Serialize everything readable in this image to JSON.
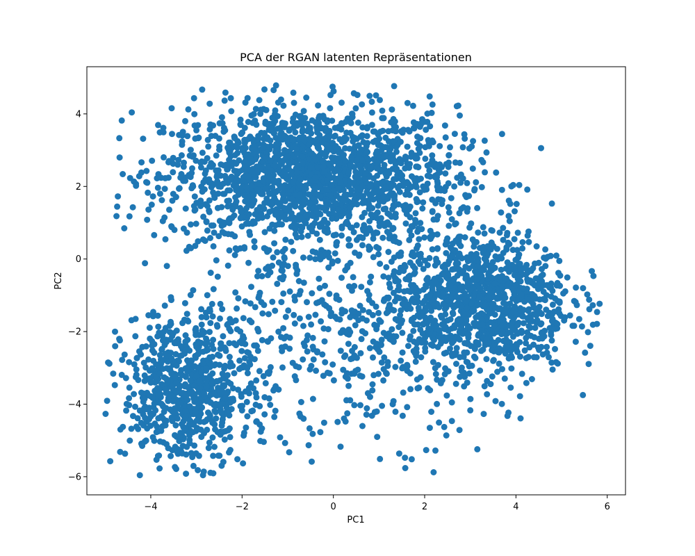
{
  "chart_data": {
    "type": "scatter",
    "title": "PCA der RGAN latenten Repräsentationen",
    "xlabel": "PC1",
    "ylabel": "PC2",
    "xlim": [
      -5.4,
      6.4
    ],
    "ylim": [
      -6.5,
      5.3
    ],
    "xticks": [
      -4,
      -2,
      0,
      2,
      4,
      6
    ],
    "yticks": [
      -6,
      -4,
      -2,
      0,
      2,
      4
    ],
    "grid": false,
    "color": "#1f77b4",
    "series": [
      {
        "clusters": [
          {
            "center": [
              -0.5,
              2.3
            ],
            "spread": [
              1.6,
              0.95
            ],
            "share": 0.45
          },
          {
            "center": [
              3.2,
              -1.2
            ],
            "spread": [
              1.0,
              1.0
            ],
            "share": 0.25
          },
          {
            "center": [
              -3.2,
              -3.6
            ],
            "spread": [
              0.7,
              1.0
            ],
            "share": 0.18
          },
          {
            "center": [
              0.3,
              -2.0
            ],
            "spread": [
              1.8,
              1.5
            ],
            "share": 0.12
          }
        ],
        "x_range": [
          -5.0,
          5.9
        ],
        "y_range": [
          -6.0,
          4.85
        ]
      }
    ]
  }
}
